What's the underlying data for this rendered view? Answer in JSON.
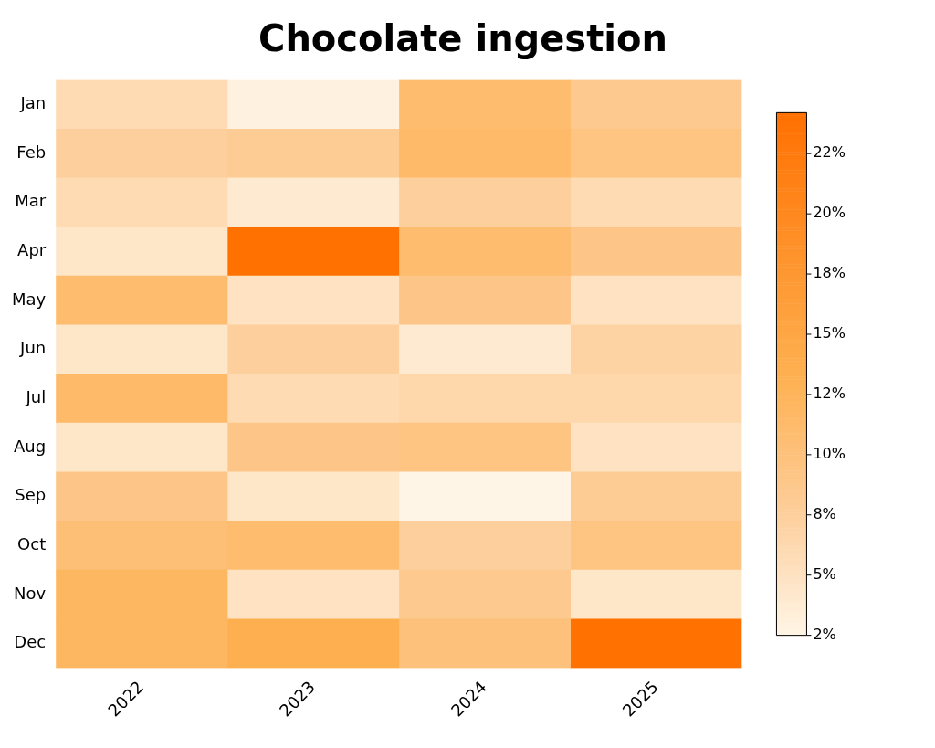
{
  "chart_data": {
    "type": "heatmap",
    "title": "Chocolate ingestion",
    "categories": [
      "2022",
      "2023",
      "2024",
      "2025"
    ],
    "y_categories": [
      "Jan",
      "Feb",
      "Mar",
      "Apr",
      "May",
      "Jun",
      "Jul",
      "Aug",
      "Sep",
      "Oct",
      "Nov",
      "Dec"
    ],
    "cells": [
      [
        6,
        3,
        11,
        8.5
      ],
      [
        7.5,
        8,
        11.5,
        9.5
      ],
      [
        6,
        4,
        7.5,
        6
      ],
      [
        4.5,
        24,
        11,
        9
      ],
      [
        11,
        5,
        9,
        5
      ],
      [
        4.5,
        7.5,
        4,
        7
      ],
      [
        11.5,
        6,
        6.5,
        6.5
      ],
      [
        4.5,
        9,
        9.5,
        5
      ],
      [
        9,
        4.5,
        2.5,
        8
      ],
      [
        10.5,
        11,
        7.5,
        9.5
      ],
      [
        12,
        5,
        8.5,
        4.5
      ],
      [
        12,
        13.5,
        10,
        24
      ]
    ],
    "clim": [
      2.5,
      24.2
    ],
    "cticks": [
      {
        "value": 2.5,
        "label": "2%"
      },
      {
        "value": 5,
        "label": "5%"
      },
      {
        "value": 7.5,
        "label": "8%"
      },
      {
        "value": 10,
        "label": "10%"
      },
      {
        "value": 12.5,
        "label": "12%"
      },
      {
        "value": 15,
        "label": "15%"
      },
      {
        "value": 17.5,
        "label": "18%"
      },
      {
        "value": 20,
        "label": "20%"
      },
      {
        "value": 22.5,
        "label": "22%"
      }
    ]
  }
}
